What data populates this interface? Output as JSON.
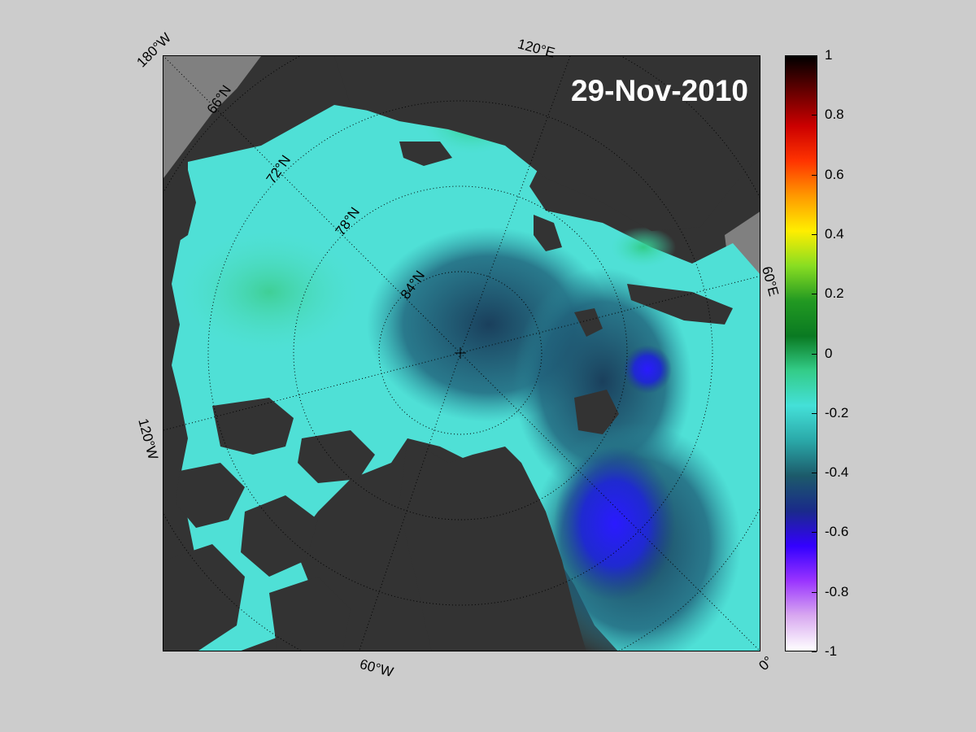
{
  "date_label": "29-Nov-2010",
  "longitude_labels": [
    "180°W",
    "120°E",
    "60°E",
    "0°",
    "60°W",
    "120°W"
  ],
  "latitude_labels": [
    "66°N",
    "72°N",
    "78°N",
    "84°N"
  ],
  "colorbar": {
    "ticks": [
      "1",
      "0.8",
      "0.6",
      "0.4",
      "0.2",
      "0",
      "-0.2",
      "-0.4",
      "-0.6",
      "-0.8",
      "-1"
    ],
    "min": -1,
    "max": 1,
    "colors": [
      "#ffffff",
      "#d8a8f0",
      "#9933ff",
      "#3300ff",
      "#1a2a8a",
      "#1c5a6a",
      "#2aa8a8",
      "#44e0d8",
      "#33cc88",
      "#0a7a22",
      "#229922",
      "#88dd22",
      "#ffee00",
      "#ff9900",
      "#ff3300",
      "#cc0000",
      "#660000",
      "#000000"
    ]
  },
  "colors": {
    "background": "#cccccc",
    "land": "#333333",
    "no_data": "#808080"
  }
}
